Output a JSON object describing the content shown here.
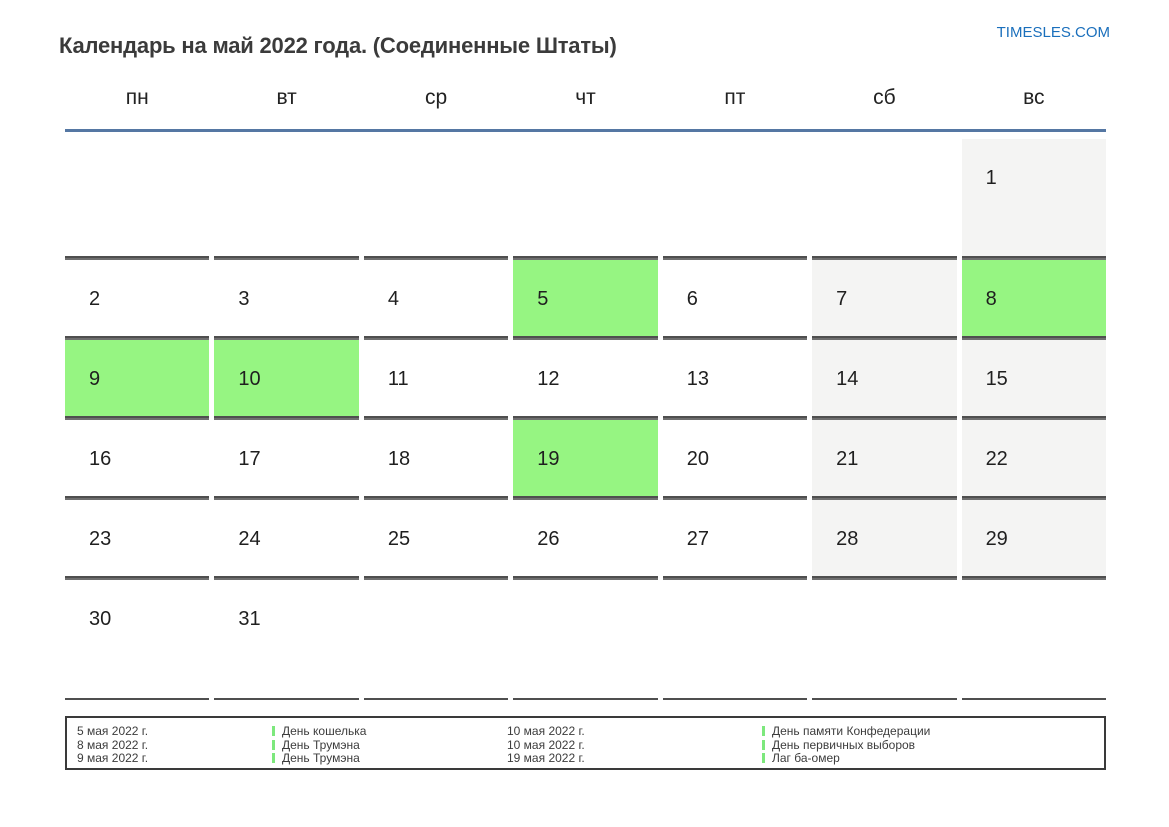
{
  "page": {
    "title": "Календарь на май 2022 года. (Соединенные Штаты)",
    "site_link": "TIMESLES.COM"
  },
  "calendar": {
    "month_label": "май 2022",
    "weekday_headers": [
      "пн",
      "вт",
      "ср",
      "чт",
      "пт",
      "сб",
      "вс"
    ],
    "weeks": [
      [
        {
          "day": "",
          "type": "empty"
        },
        {
          "day": "",
          "type": "empty"
        },
        {
          "day": "",
          "type": "empty"
        },
        {
          "day": "",
          "type": "empty"
        },
        {
          "day": "",
          "type": "empty"
        },
        {
          "day": "",
          "type": "empty"
        },
        {
          "day": "1",
          "type": "weekend"
        }
      ],
      [
        {
          "day": "2",
          "type": "workday"
        },
        {
          "day": "3",
          "type": "workday"
        },
        {
          "day": "4",
          "type": "workday"
        },
        {
          "day": "5",
          "type": "holiday"
        },
        {
          "day": "6",
          "type": "workday"
        },
        {
          "day": "7",
          "type": "weekend"
        },
        {
          "day": "8",
          "type": "holiday"
        }
      ],
      [
        {
          "day": "9",
          "type": "holiday"
        },
        {
          "day": "10",
          "type": "holiday"
        },
        {
          "day": "11",
          "type": "workday"
        },
        {
          "day": "12",
          "type": "workday"
        },
        {
          "day": "13",
          "type": "workday"
        },
        {
          "day": "14",
          "type": "weekend"
        },
        {
          "day": "15",
          "type": "weekend"
        }
      ],
      [
        {
          "day": "16",
          "type": "workday"
        },
        {
          "day": "17",
          "type": "workday"
        },
        {
          "day": "18",
          "type": "workday"
        },
        {
          "day": "19",
          "type": "holiday"
        },
        {
          "day": "20",
          "type": "workday"
        },
        {
          "day": "21",
          "type": "weekend"
        },
        {
          "day": "22",
          "type": "weekend"
        }
      ],
      [
        {
          "day": "23",
          "type": "workday"
        },
        {
          "day": "24",
          "type": "workday"
        },
        {
          "day": "25",
          "type": "workday"
        },
        {
          "day": "26",
          "type": "workday"
        },
        {
          "day": "27",
          "type": "workday"
        },
        {
          "day": "28",
          "type": "weekend"
        },
        {
          "day": "29",
          "type": "weekend"
        }
      ],
      [
        {
          "day": "30",
          "type": "workday"
        },
        {
          "day": "31",
          "type": "workday"
        },
        {
          "day": "",
          "type": "empty"
        },
        {
          "day": "",
          "type": "empty"
        },
        {
          "day": "",
          "type": "empty"
        },
        {
          "day": "",
          "type": "empty"
        },
        {
          "day": "",
          "type": "empty"
        }
      ]
    ]
  },
  "legend": {
    "entries": [
      {
        "date": "5 мая 2022 г.",
        "name": "День кошелька"
      },
      {
        "date": "8 мая 2022 г.",
        "name": "День Трумэна"
      },
      {
        "date": "9 мая 2022 г.",
        "name": "День Трумэна"
      },
      {
        "date": "10 мая 2022 г.",
        "name": "День памяти Конфедерации"
      },
      {
        "date": "10 мая 2022 г.",
        "name": "День первичных выборов"
      },
      {
        "date": "19 мая 2022 г.",
        "name": "Лаг ба-омер"
      }
    ]
  },
  "colors": {
    "holiday_green": "#96f582",
    "weekend_gray": "#f4f4f3",
    "header_line_blue": "#5577a3",
    "link_blue": "#1a6fbc",
    "tick_green": "#7de87d"
  }
}
